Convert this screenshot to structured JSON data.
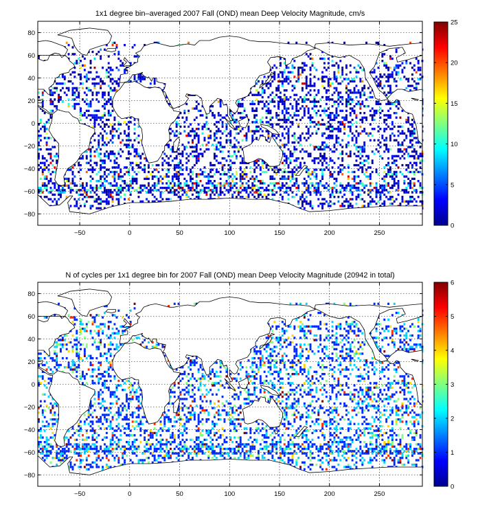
{
  "colors": {
    "frame": "#000000",
    "grid": "#000000",
    "land_outline": "#000000",
    "background": "#ffffff"
  },
  "colormap": "jet",
  "chart_data": [
    {
      "type": "heatmap",
      "title": "1x1 degree bin–averaged 2007 Fall (OND) mean Deep Velocity Magnitude, cm/s",
      "xlabel": "",
      "ylabel": "",
      "xlim": [
        -92,
        293
      ],
      "ylim": [
        -90,
        90
      ],
      "xticks": [
        -50,
        0,
        50,
        100,
        150,
        200,
        250
      ],
      "xtick_labels": [
        "−50",
        "0",
        "50",
        "100",
        "150",
        "200",
        "250"
      ],
      "yticks": [
        80,
        60,
        40,
        20,
        0,
        -20,
        -40,
        -60,
        -80
      ],
      "ytick_labels": [
        "80",
        "60",
        "40",
        "20",
        "0",
        "−20",
        "−40",
        "−60",
        "−80"
      ],
      "grid": true,
      "colorbar": {
        "min": 0,
        "max": 25,
        "ticks": [
          0,
          5,
          10,
          15,
          20,
          25
        ],
        "tick_labels": [
          "0",
          "5",
          "10",
          "15",
          "20",
          "25"
        ],
        "placement": "right"
      },
      "bins": {
        "resolution_deg": 1,
        "value_distribution": "mostly 0–4 cm/s (dark blue) with scattered higher values up to ~25 cm/s, highest in the Southern Ocean near −55°",
        "coverage": "sparse, ocean only"
      }
    },
    {
      "type": "heatmap",
      "title": "N of cycles per 1x1 degree bin for 2007 Fall (OND) mean Deep Velocity Magnitude (20942 in total)",
      "xlabel": "",
      "ylabel": "",
      "xlim": [
        -92,
        293
      ],
      "ylim": [
        -90,
        90
      ],
      "xticks": [
        -50,
        0,
        50,
        100,
        150,
        200,
        250
      ],
      "xtick_labels": [
        "−50",
        "0",
        "50",
        "100",
        "150",
        "200",
        "250"
      ],
      "yticks": [
        80,
        60,
        40,
        20,
        0,
        -20,
        -40,
        -60,
        -80
      ],
      "ytick_labels": [
        "80",
        "60",
        "40",
        "20",
        "0",
        "−20",
        "−40",
        "−60",
        "−80"
      ],
      "grid": true,
      "total_cycles": 20942,
      "colorbar": {
        "min": 0,
        "max": 6,
        "ticks": [
          0,
          1,
          2,
          3,
          4,
          5,
          6
        ],
        "tick_labels": [
          "0",
          "1",
          "2",
          "3",
          "4",
          "5",
          "6"
        ],
        "placement": "right"
      },
      "bins": {
        "resolution_deg": 1,
        "value_distribution": "mostly 1–2 cycles per bin, scattered bins with 3–6",
        "coverage": "sparse, ocean only"
      }
    }
  ]
}
